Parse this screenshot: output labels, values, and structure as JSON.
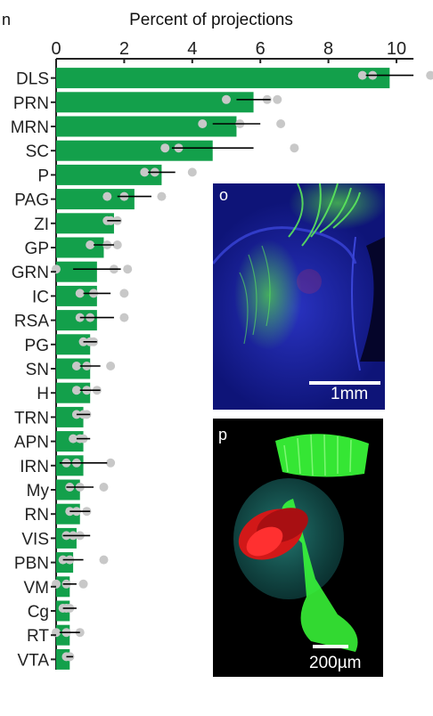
{
  "chart_data": {
    "type": "bar",
    "orientation": "horizontal",
    "title": "Percent of projections",
    "xlim": [
      0,
      10.5
    ],
    "xticks": [
      "0",
      "2",
      "4",
      "6",
      "8",
      "10"
    ],
    "bar_color": "#13a04b",
    "categories": [
      "DLS",
      "PRN",
      "MRN",
      "SC",
      "P",
      "PAG",
      "ZI",
      "GP",
      "GRN",
      "IC",
      "RSA",
      "PG",
      "SN",
      "H",
      "TRN",
      "APN",
      "IRN",
      "My",
      "RN",
      "VIS",
      "PBN",
      "VM",
      "Cg",
      "RT",
      "VTA"
    ],
    "values": [
      9.8,
      5.8,
      5.3,
      4.6,
      3.1,
      2.3,
      1.7,
      1.4,
      1.2,
      1.2,
      1.2,
      1.0,
      1.0,
      1.0,
      0.8,
      0.8,
      0.8,
      0.7,
      0.7,
      0.6,
      0.5,
      0.4,
      0.4,
      0.4,
      0.4
    ],
    "error": [
      0.7,
      0.5,
      0.7,
      1.2,
      0.4,
      0.5,
      0.2,
      0.3,
      0.7,
      0.4,
      0.5,
      0.2,
      0.3,
      0.3,
      0.2,
      0.2,
      0.7,
      0.4,
      0.3,
      0.4,
      0.3,
      0.2,
      0.2,
      0.3,
      0.1
    ],
    "points": [
      [
        9.0,
        9.3,
        11.0
      ],
      [
        5.0,
        6.2,
        6.5
      ],
      [
        4.3,
        5.4,
        6.6
      ],
      [
        3.2,
        3.6,
        7.0
      ],
      [
        2.6,
        2.9,
        4.0
      ],
      [
        1.5,
        2.0,
        3.1
      ],
      [
        1.5,
        1.6,
        1.8
      ],
      [
        1.0,
        1.5,
        1.8
      ],
      [
        0.0,
        1.7,
        2.1
      ],
      [
        0.7,
        1.1,
        2.0
      ],
      [
        0.7,
        1.0,
        2.0
      ],
      [
        0.8,
        1.0,
        1.1
      ],
      [
        0.6,
        0.9,
        1.6
      ],
      [
        0.6,
        0.9,
        1.2
      ],
      [
        0.6,
        0.8,
        0.9
      ],
      [
        0.5,
        0.7,
        0.8
      ],
      [
        0.3,
        0.6,
        1.6
      ],
      [
        0.4,
        0.7,
        1.4
      ],
      [
        0.4,
        0.6,
        0.9
      ],
      [
        0.3,
        0.5,
        0.7
      ],
      [
        0.2,
        0.4,
        1.4
      ],
      [
        0.0,
        0.3,
        0.8
      ],
      [
        0.2,
        0.3,
        0.4
      ],
      [
        0.0,
        0.3,
        0.7
      ],
      [
        0.3,
        0.4,
        0.4
      ]
    ]
  },
  "clipped_letter": "n",
  "panels": {
    "o": {
      "letter": "o",
      "scale_label": "1mm"
    },
    "p": {
      "letter": "p",
      "scale_label": "200µm"
    }
  }
}
